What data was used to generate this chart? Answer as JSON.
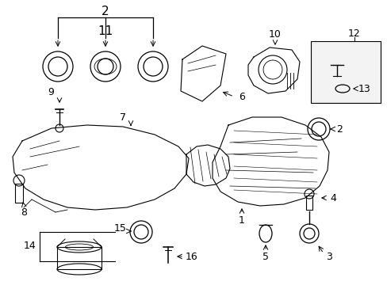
{
  "bg_color": "#ffffff",
  "line_color": "#000000",
  "fig_w": 4.89,
  "fig_h": 3.6,
  "dpi": 100,
  "xlim": [
    0,
    489
  ],
  "ylim": [
    0,
    360
  ]
}
